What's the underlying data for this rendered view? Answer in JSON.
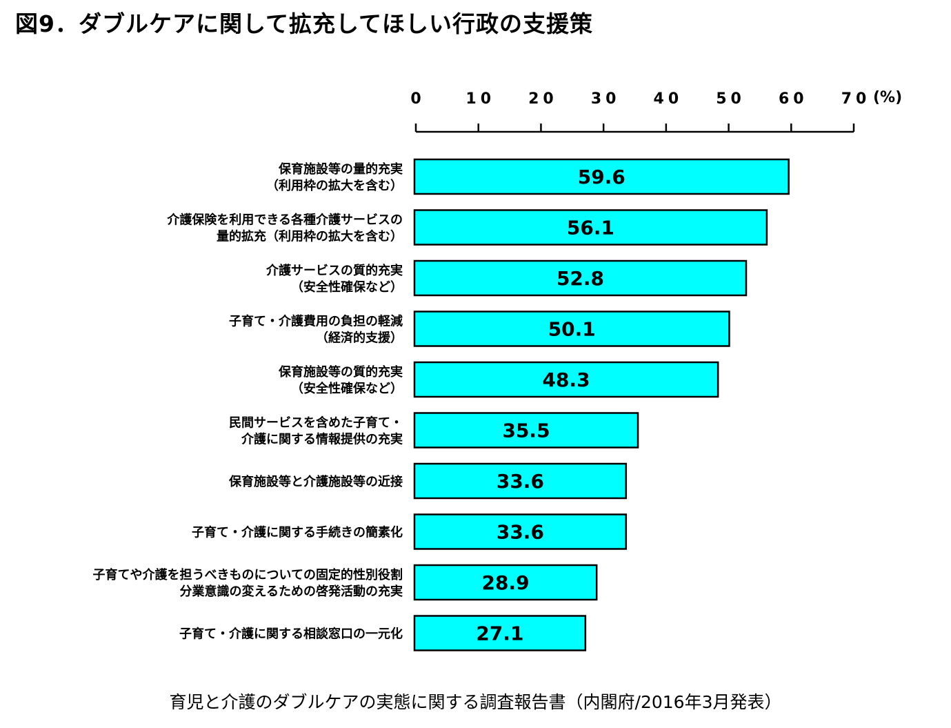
{
  "title": "図9．ダブルケアに関して拡充してほしい行政の支援策",
  "source": "育児と介護のダブルケアの実態に関する調査報告書（内閣府/2016年3月発表）",
  "chart_data": {
    "type": "bar",
    "orientation": "horizontal",
    "title": "図9．ダブルケアに関して拡充してほしい行政の支援策",
    "unit": "(%)",
    "xlim": [
      0,
      70
    ],
    "ticks": [
      0,
      10,
      20,
      30,
      40,
      50,
      60,
      70
    ],
    "tick_labels": [
      "0",
      "10",
      "20",
      "30",
      "40",
      "50",
      "60",
      "70"
    ],
    "axis_position": "top",
    "grid": false,
    "bar_color": "#00FFFF",
    "bar_edge_color": "#000000",
    "categories": [
      [
        "保育施設等の量的充実",
        "（利用枠の拡大を含む）"
      ],
      [
        "介護保険を利用できる各種介護サービスの",
        "量的拡充（利用枠の拡大を含む）"
      ],
      [
        "介護サービスの質的充実",
        "（安全性確保など）"
      ],
      [
        "子育て・介護費用の負担の軽減",
        "（経済的支援）"
      ],
      [
        "保育施設等の質的充実",
        "（安全性確保など）"
      ],
      [
        "民間サービスを含めた子育て・",
        "介護に関する情報提供の充実"
      ],
      [
        "保育施設等と介護施設等の近接"
      ],
      [
        "子育て・介護に関する手続きの簡素化"
      ],
      [
        "子育てや介護を担うべきものについての固定的性別役割",
        "分業意識の変えるための啓発活動の充実"
      ],
      [
        "子育て・介護に関する相談窓口の一元化"
      ]
    ],
    "values": [
      59.6,
      56.1,
      52.8,
      50.1,
      48.3,
      35.5,
      33.6,
      33.6,
      28.9,
      27.1
    ],
    "value_labels": [
      "59.6",
      "56.1",
      "52.8",
      "50.1",
      "48.3",
      "35.5",
      "33.6",
      "33.6",
      "28.9",
      "27.1"
    ]
  }
}
